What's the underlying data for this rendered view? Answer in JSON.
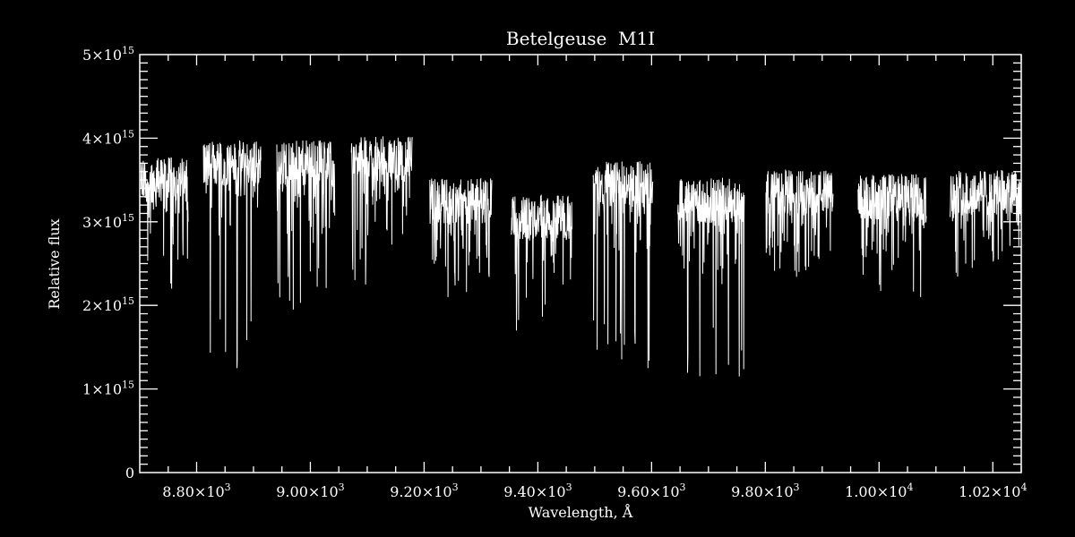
{
  "chart_data": {
    "type": "line",
    "title": "Betelgeuse  M1I",
    "xlabel": "Wavelength, Å",
    "ylabel": "Relative flux",
    "xlim": [
      8700,
      10250
    ],
    "ylim": [
      0,
      5000000000000000.0
    ],
    "grid": false,
    "background": "#000000",
    "line_color": "#ffffff",
    "x_ticks": [
      {
        "value": 8800,
        "label": "8.80×10",
        "exp": "3"
      },
      {
        "value": 9000,
        "label": "9.00×10",
        "exp": "3"
      },
      {
        "value": 9200,
        "label": "9.20×10",
        "exp": "3"
      },
      {
        "value": 9400,
        "label": "9.40×10",
        "exp": "3"
      },
      {
        "value": 9600,
        "label": "9.60×10",
        "exp": "3"
      },
      {
        "value": 9800,
        "label": "9.80×10",
        "exp": "3"
      },
      {
        "value": 10000,
        "label": "1.00×10",
        "exp": "4"
      },
      {
        "value": 10200,
        "label": "1.02×10",
        "exp": "4"
      }
    ],
    "y_ticks": [
      {
        "value": 0,
        "label": "0",
        "exp": ""
      },
      {
        "value": 1000000000000000.0,
        "label": "1×10",
        "exp": "15"
      },
      {
        "value": 2000000000000000.0,
        "label": "2×10",
        "exp": "15"
      },
      {
        "value": 3000000000000000.0,
        "label": "3×10",
        "exp": "15"
      },
      {
        "value": 4000000000000000.0,
        "label": "4×10",
        "exp": "15"
      },
      {
        "value": 5000000000000000.0,
        "label": "5×10",
        "exp": "15"
      }
    ],
    "segments": [
      {
        "x_range": [
          8702,
          8785
        ],
        "continuum": 3500000000000000.0,
        "min": 2200000000000000.0
      },
      {
        "x_range": [
          8812,
          8913
        ],
        "continuum": 3700000000000000.0,
        "min": 1250000000000000.0
      },
      {
        "x_range": [
          8941,
          9043
        ],
        "continuum": 3700000000000000.0,
        "min": 1950000000000000.0
      },
      {
        "x_range": [
          9072,
          9179
        ],
        "continuum": 3750000000000000.0,
        "min": 2250000000000000.0
      },
      {
        "x_range": [
          9210,
          9319
        ],
        "continuum": 3250000000000000.0,
        "min": 2100000000000000.0
      },
      {
        "x_range": [
          9353,
          9460
        ],
        "continuum": 3050000000000000.0,
        "min": 1700000000000000.0
      },
      {
        "x_range": [
          9497,
          9602
        ],
        "continuum": 3450000000000000.0,
        "min": 1250000000000000.0
      },
      {
        "x_range": [
          9646,
          9763
        ],
        "continuum": 3250000000000000.0,
        "min": 1150000000000000.0
      },
      {
        "x_range": [
          9801,
          9919
        ],
        "continuum": 3350000000000000.0,
        "min": 2400000000000000.0
      },
      {
        "x_range": [
          9963,
          10083
        ],
        "continuum": 3300000000000000.0,
        "min": 2100000000000000.0
      },
      {
        "x_range": [
          10125,
          10250
        ],
        "continuum": 3350000000000000.0,
        "min": 2500000000000000.0
      }
    ]
  }
}
